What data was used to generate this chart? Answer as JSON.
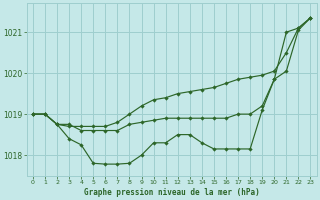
{
  "background_color": "#c5e8e8",
  "grid_color": "#9ecece",
  "line_color": "#2d6629",
  "marker_color": "#2d6629",
  "text_color": "#2d6629",
  "xlabel": "Graphe pression niveau de la mer (hPa)",
  "x_ticks": [
    0,
    1,
    2,
    3,
    4,
    5,
    6,
    7,
    8,
    9,
    10,
    11,
    12,
    13,
    14,
    15,
    16,
    17,
    18,
    19,
    20,
    21,
    22,
    23
  ],
  "ylim": [
    1017.5,
    1021.7
  ],
  "y_ticks": [
    1018,
    1019,
    1020,
    1021
  ],
  "line1": [
    1019.0,
    1019.0,
    1018.75,
    1018.4,
    1018.25,
    1017.8,
    1017.78,
    1017.78,
    1017.8,
    1018.0,
    1018.3,
    1018.3,
    1018.5,
    1018.5,
    1018.3,
    1018.15,
    1018.15,
    1018.15,
    1018.15,
    1019.1,
    1019.85,
    1021.0,
    1021.1,
    1021.35
  ],
  "line2": [
    1019.0,
    1019.0,
    1018.75,
    1018.75,
    1018.6,
    1018.6,
    1018.6,
    1018.6,
    1018.75,
    1018.8,
    1018.85,
    1018.9,
    1018.9,
    1018.9,
    1018.9,
    1018.9,
    1018.9,
    1019.0,
    1019.0,
    1019.2,
    1019.85,
    1020.05,
    1021.05,
    1021.35
  ],
  "line3": [
    1019.0,
    1019.0,
    1018.75,
    1018.7,
    1018.7,
    1018.7,
    1018.7,
    1018.8,
    1019.0,
    1019.2,
    1019.35,
    1019.4,
    1019.5,
    1019.55,
    1019.6,
    1019.65,
    1019.75,
    1019.85,
    1019.9,
    1019.95,
    1020.05,
    1020.5,
    1021.1,
    1021.35
  ]
}
